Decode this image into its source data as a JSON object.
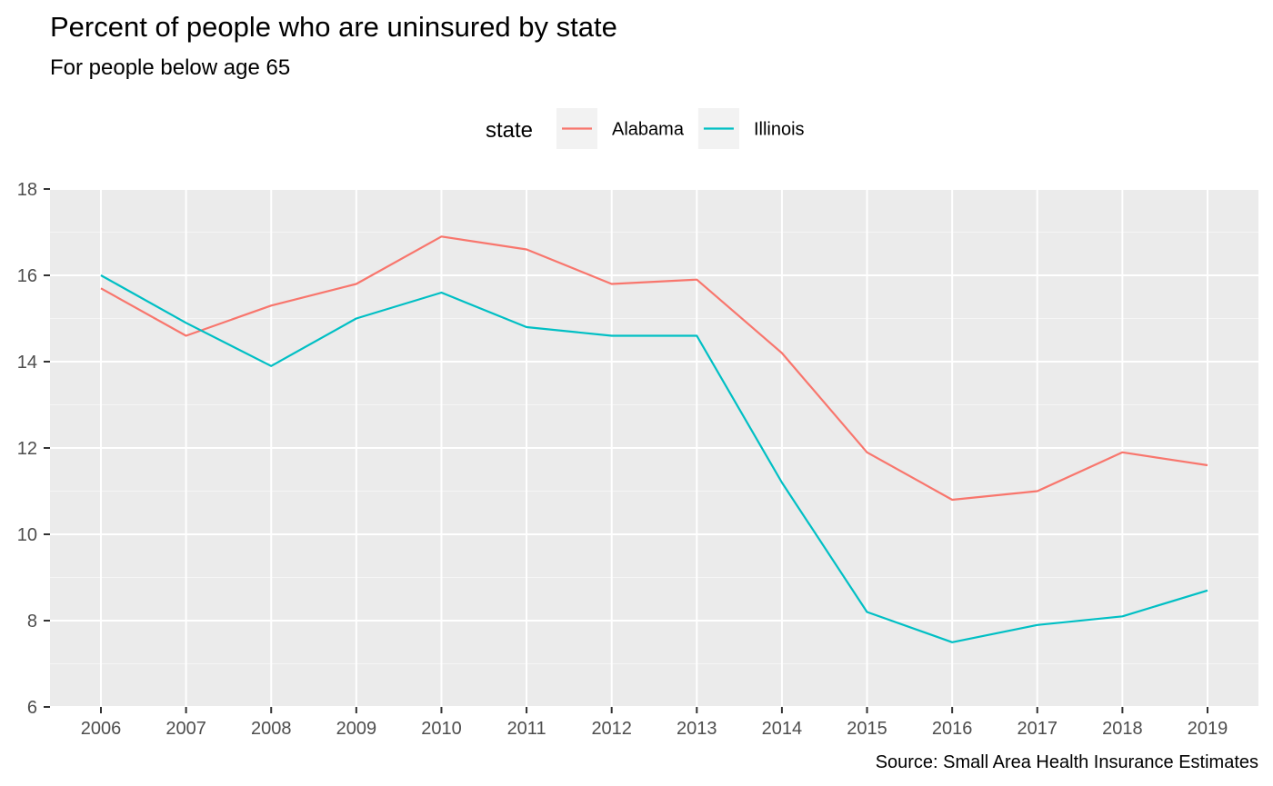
{
  "chart_data": {
    "type": "line",
    "title": "Percent of people who are uninsured by state",
    "subtitle": "For people below age 65",
    "caption": "Source: Small Area Health Insurance Estimates",
    "legend_title": "state",
    "legend_position": "top",
    "x": [
      "2006",
      "2007",
      "2008",
      "2009",
      "2010",
      "2011",
      "2012",
      "2013",
      "2014",
      "2015",
      "2016",
      "2017",
      "2018",
      "2019"
    ],
    "y_ticks": [
      6,
      8,
      10,
      12,
      14,
      16,
      18
    ],
    "ylim": [
      6,
      18
    ],
    "grid": true,
    "panel_background": "#ebebeb",
    "series": [
      {
        "name": "Alabama",
        "color": "#f8766d",
        "values": [
          15.7,
          14.6,
          15.3,
          15.8,
          16.9,
          16.6,
          15.8,
          15.9,
          14.2,
          11.9,
          10.8,
          11.0,
          11.9,
          11.6
        ]
      },
      {
        "name": "Illinois",
        "color": "#00bfc4",
        "values": [
          16.0,
          14.9,
          13.9,
          15.0,
          15.6,
          14.8,
          14.6,
          14.6,
          11.2,
          8.2,
          7.5,
          7.9,
          8.1,
          8.7
        ]
      }
    ]
  }
}
